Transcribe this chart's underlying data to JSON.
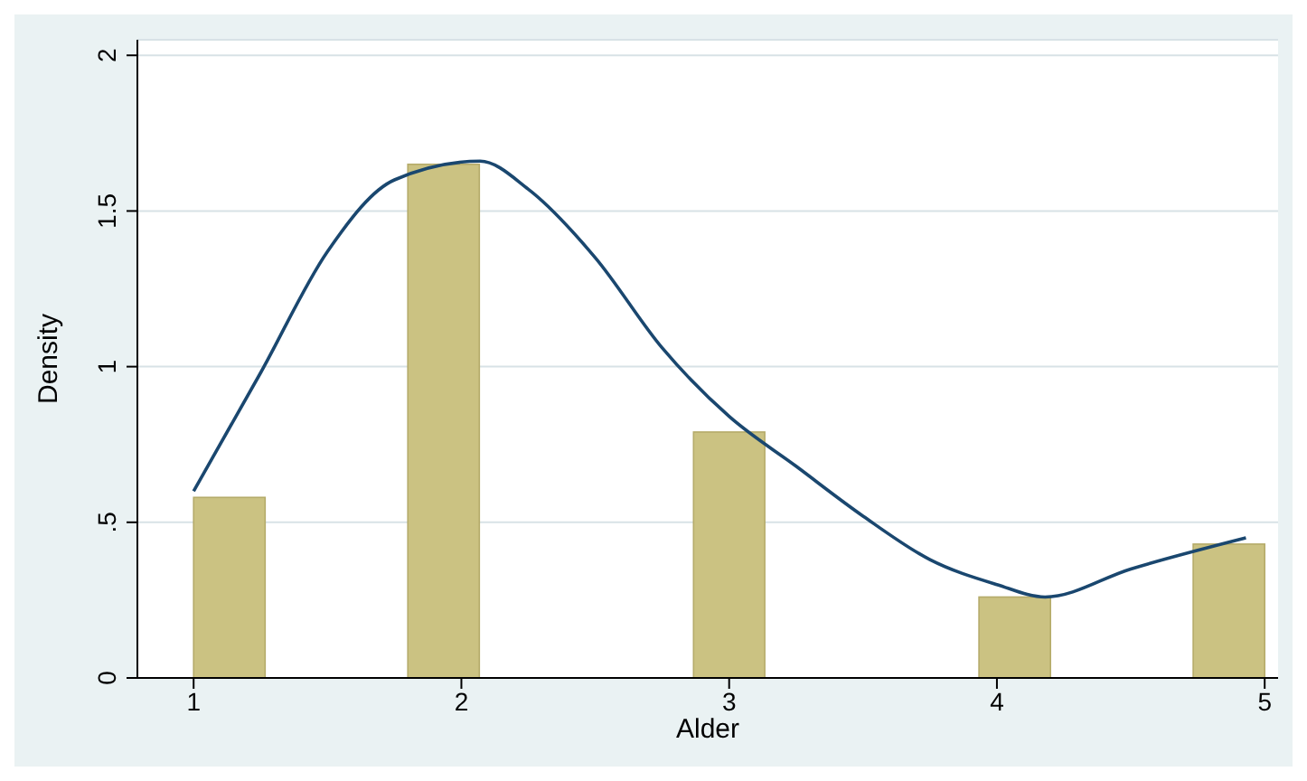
{
  "chart_data": {
    "type": "histogram",
    "xlabel": "Alder",
    "ylabel": "Density",
    "bins": [
      1,
      1.267,
      1.533,
      1.8,
      2.067,
      2.333,
      2.6,
      2.867,
      3.133,
      3.4,
      3.667,
      3.933,
      4.2,
      4.467,
      4.733,
      5
    ],
    "values": [
      0.58,
      0,
      0,
      1.65,
      0,
      0,
      0,
      0.79,
      0,
      0,
      0,
      0.26,
      0,
      0,
      0.43
    ],
    "color": "#cbc282",
    "series": [
      {
        "type": "line",
        "color": "#1a476f",
        "x": [
          1,
          1.25,
          1.5,
          1.75,
          2.07,
          2.25,
          2.5,
          2.75,
          3,
          3.25,
          3.5,
          3.75,
          4,
          4.18,
          4.5,
          4.93
        ],
        "values": [
          0.6,
          0.98,
          1.37,
          1.6,
          1.66,
          1.57,
          1.35,
          1.06,
          0.84,
          0.68,
          0.52,
          0.38,
          0.3,
          0.26,
          0.35,
          0.45
        ]
      }
    ],
    "xlim": [
      0.79,
      5.05
    ],
    "xticks": [
      1,
      2,
      3,
      4,
      5
    ],
    "ylim": [
      0,
      2.05
    ],
    "yticks": [
      0,
      {
        "value": 0.5,
        "label": ".5"
      },
      1,
      1.5,
      2
    ],
    "grid": "y",
    "marker": "none",
    "line_style": "solid"
  }
}
